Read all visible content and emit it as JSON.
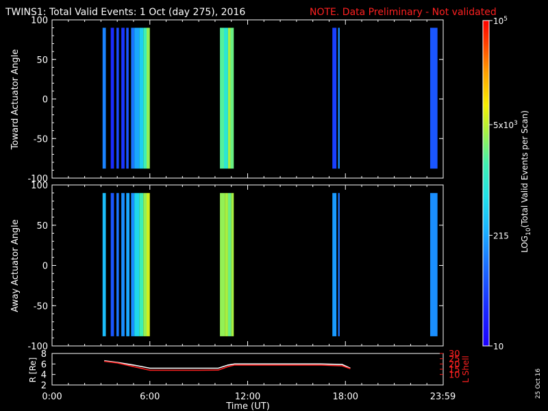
{
  "title": {
    "main": "TWINS1: Total Valid Events:  1 Oct (day 275), 2016",
    "note": "NOTE. Data Preliminary - Not validated",
    "note_color": "#ff0000"
  },
  "stamp": "25 Oct 16",
  "chart_data": [
    {
      "type": "heatmap",
      "name": "toward",
      "ylabel": "Toward Actuator Angle",
      "ylim": [
        -100,
        100
      ],
      "yticks": [
        100,
        50,
        0,
        -50,
        -100
      ],
      "y_extent": [
        -88,
        90
      ],
      "xlim": [
        0,
        24
      ],
      "strips": [
        {
          "x": [
            3.1,
            3.3
          ],
          "c": 0.28
        },
        {
          "x": [
            3.6,
            3.8
          ],
          "c": 0.12
        },
        {
          "x": [
            3.95,
            4.1
          ],
          "c": 0.18
        },
        {
          "x": [
            4.25,
            4.45
          ],
          "c": 0.14
        },
        {
          "x": [
            4.55,
            4.7
          ],
          "c": 0.2
        },
        {
          "x": [
            4.85,
            5.05
          ],
          "c": 0.26
        },
        {
          "x": [
            5.05,
            5.35
          ],
          "c": 0.34
        },
        {
          "x": [
            5.35,
            5.6
          ],
          "c": 0.42
        },
        {
          "x": [
            5.6,
            5.8
          ],
          "c": 0.55
        },
        {
          "x": [
            5.8,
            6.0
          ],
          "c": 0.64
        },
        {
          "x": [
            10.3,
            10.55
          ],
          "c": 0.58
        },
        {
          "x": [
            10.55,
            10.8
          ],
          "c": 0.5
        },
        {
          "x": [
            10.8,
            10.95
          ],
          "c": 0.66
        },
        {
          "x": [
            10.95,
            11.15
          ],
          "c": 0.6
        },
        {
          "x": [
            17.2,
            17.45
          ],
          "c": 0.16
        },
        {
          "x": [
            17.55,
            17.65
          ],
          "c": 0.3
        },
        {
          "x": [
            23.2,
            23.65
          ],
          "c": 0.2
        }
      ]
    },
    {
      "type": "heatmap",
      "name": "away",
      "ylabel": "Away Actuator Angle",
      "ylim": [
        -100,
        100
      ],
      "yticks": [
        100,
        50,
        0,
        -50,
        -100
      ],
      "y_extent": [
        -88,
        90
      ],
      "xlim": [
        0,
        24
      ],
      "strips": [
        {
          "x": [
            3.1,
            3.3
          ],
          "c": 0.38
        },
        {
          "x": [
            3.6,
            3.8
          ],
          "c": 0.2
        },
        {
          "x": [
            3.95,
            4.1
          ],
          "c": 0.26
        },
        {
          "x": [
            4.25,
            4.45
          ],
          "c": 0.3
        },
        {
          "x": [
            4.55,
            4.75
          ],
          "c": 0.34
        },
        {
          "x": [
            4.85,
            5.05
          ],
          "c": 0.3
        },
        {
          "x": [
            5.05,
            5.35
          ],
          "c": 0.44
        },
        {
          "x": [
            5.35,
            5.6
          ],
          "c": 0.55
        },
        {
          "x": [
            5.6,
            5.8
          ],
          "c": 0.64
        },
        {
          "x": [
            5.8,
            6.0
          ],
          "c": 0.7
        },
        {
          "x": [
            10.3,
            10.6
          ],
          "c": 0.64
        },
        {
          "x": [
            10.6,
            10.8
          ],
          "c": 0.66
        },
        {
          "x": [
            10.8,
            11.0
          ],
          "c": 0.6
        },
        {
          "x": [
            11.0,
            11.15
          ],
          "c": 0.66
        },
        {
          "x": [
            17.2,
            17.45
          ],
          "c": 0.32
        },
        {
          "x": [
            17.55,
            17.65
          ],
          "c": 0.26
        },
        {
          "x": [
            23.2,
            23.65
          ],
          "c": 0.3
        }
      ]
    },
    {
      "type": "line",
      "name": "orbit",
      "ylabel_left": "R [Re]",
      "ylabel_right": "L Shell",
      "ylim_left": [
        2,
        8
      ],
      "yticks_left": [
        8,
        6,
        4,
        2
      ],
      "ylim_right": [
        0,
        30
      ],
      "yticks_right": [
        30,
        25,
        20,
        15,
        10
      ],
      "xlim": [
        0,
        24
      ],
      "xticks": [
        "0:00",
        "6:00",
        "12:00",
        "18:00",
        "23:59"
      ],
      "xtick_values": [
        0,
        6,
        12,
        18,
        23.98
      ],
      "xlabel": "Time (UT)",
      "series": [
        {
          "axis": "left",
          "color": "#ffffff",
          "x": [
            3.2,
            4.0,
            5.0,
            6.0,
            7.0,
            9.0,
            10.2,
            10.8,
            11.2,
            12.5,
            14.5,
            16.5,
            17.8,
            18.3
          ],
          "y": [
            6.6,
            6.3,
            5.8,
            5.2,
            5.2,
            5.2,
            5.2,
            5.8,
            6.0,
            6.0,
            6.0,
            6.0,
            5.9,
            5.2
          ]
        },
        {
          "axis": "right",
          "color": "#ff2020",
          "x": [
            3.2,
            4.0,
            5.0,
            6.0,
            7.0,
            9.0,
            10.2,
            10.8,
            11.2,
            12.5,
            14.5,
            16.5,
            17.8,
            18.3
          ],
          "y": [
            22.5,
            21.0,
            17.5,
            14.0,
            14.0,
            14.0,
            14.2,
            17.5,
            19.0,
            19.0,
            19.0,
            19.0,
            18.2,
            15.5
          ]
        }
      ]
    }
  ],
  "colorbar": {
    "label": "LOG10(Total Valid Events per Scan)",
    "label_main": "LOG",
    "label_sub": "10",
    "label_rest": "(Total Valid Events per Scan)",
    "min": 10,
    "max": 100000,
    "ticks": [
      {
        "text": "10",
        "sup": "5",
        "v": 1.0
      },
      {
        "text": "5x10",
        "sup": "3",
        "v": 0.68
      },
      {
        "text": "215",
        "sup": "",
        "v": 0.34
      },
      {
        "text": "10",
        "sup": "",
        "v": 0.0
      }
    ]
  }
}
